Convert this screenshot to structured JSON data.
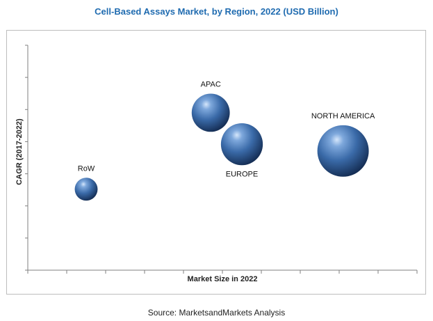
{
  "chart_data": {
    "type": "scatter",
    "subtype": "bubble",
    "title": "Cell-Based Assays Market, by Region, 2022 (USD Billion)",
    "xlabel": "Market Size in 2022",
    "ylabel": "CAGR (2017-2022)",
    "xlim": [
      0,
      10
    ],
    "ylim": [
      0,
      10
    ],
    "x_ticks": 10,
    "y_ticks": 7,
    "grid": false,
    "bubble_color": "#2f5f9e",
    "series": [
      {
        "name": "APAC",
        "x": 4.7,
        "y": 7.0,
        "size": 2.0,
        "label_position": "above"
      },
      {
        "name": "EUROPE",
        "x": 5.5,
        "y": 5.6,
        "size": 2.2,
        "label_position": "below"
      },
      {
        "name": "NORTH AMERICA",
        "x": 8.1,
        "y": 5.3,
        "size": 2.7,
        "label_position": "above"
      },
      {
        "name": "RoW",
        "x": 1.5,
        "y": 3.6,
        "size": 1.2,
        "label_position": "above"
      }
    ]
  },
  "source": "Source: MarketsandMarkets Analysis"
}
